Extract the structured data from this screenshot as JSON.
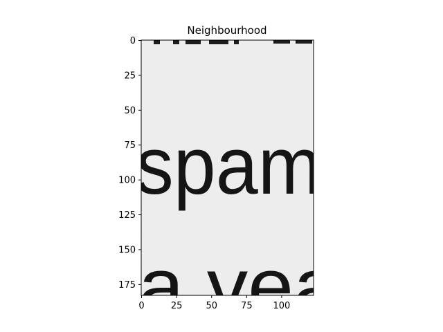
{
  "chart_data": {
    "type": "image",
    "title": "Neighbourhood",
    "xlim": [
      0,
      123
    ],
    "ylim": [
      183,
      0
    ],
    "xticks": [
      0,
      25,
      50,
      75,
      100
    ],
    "yticks": [
      0,
      25,
      50,
      75,
      100,
      125,
      150,
      175
    ],
    "image_text_fragments": [
      "spam",
      "a vea"
    ],
    "grid": false,
    "colormap": "gray"
  }
}
